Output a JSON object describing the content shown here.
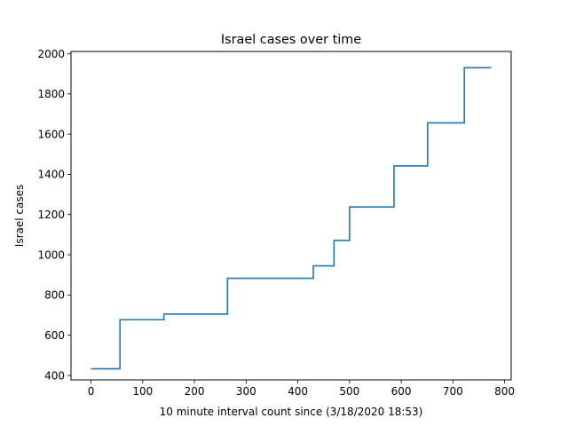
{
  "chart_data": {
    "type": "line",
    "title": "Israel cases over time",
    "xlabel": "10 minute interval count since (3/18/2020 18:53)",
    "ylabel": "Israel cases",
    "xlim": [
      -38.7,
      812.7
    ],
    "ylim": [
      378,
      2011
    ],
    "xticks": [
      0,
      100,
      200,
      300,
      400,
      500,
      600,
      700,
      800
    ],
    "yticks": [
      400,
      600,
      800,
      1000,
      1200,
      1400,
      1600,
      1800,
      2000
    ],
    "grid": false,
    "line_color": "#1f77b4",
    "series": [
      {
        "step": "post",
        "x": [
          0,
          56,
          141,
          264,
          430,
          470,
          500,
          586,
          651,
          722,
          774
        ],
        "y": [
          433,
          677,
          705,
          883,
          945,
          1071,
          1238,
          1442,
          1656,
          1930,
          1930
        ]
      }
    ]
  }
}
